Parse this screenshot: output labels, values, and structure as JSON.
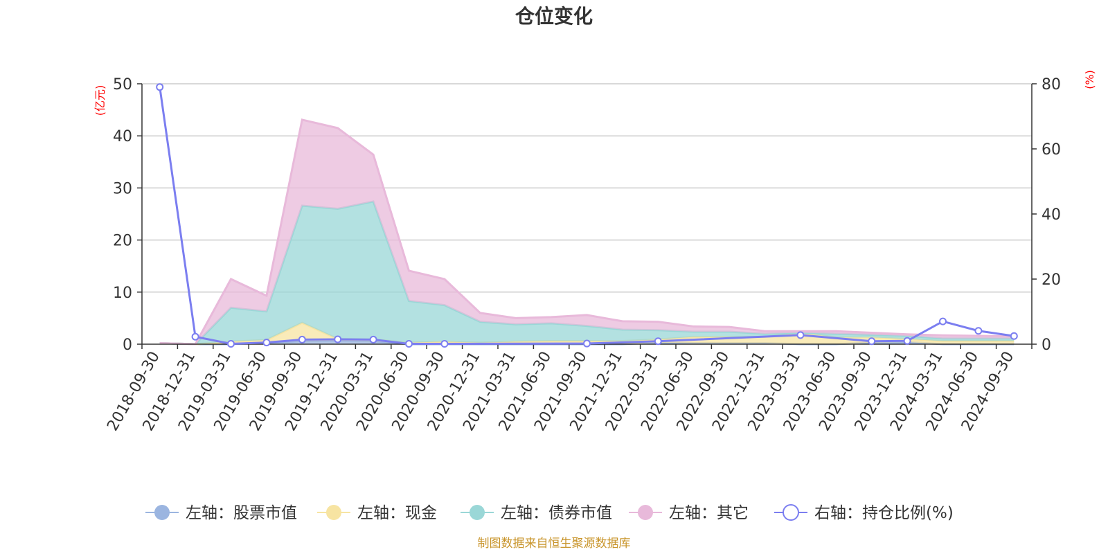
{
  "chart_data": {
    "type": "area",
    "title": "仓位变化",
    "left_unit": "(亿元)",
    "right_unit": "(%)",
    "categories": [
      "2018-09-30",
      "2018-12-31",
      "2019-03-31",
      "2019-06-30",
      "2019-09-30",
      "2019-12-31",
      "2020-03-31",
      "2020-06-30",
      "2020-09-30",
      "2020-12-31",
      "2021-03-31",
      "2021-06-30",
      "2021-09-30",
      "2021-12-31",
      "2022-03-31",
      "2022-06-30",
      "2022-09-30",
      "2022-12-31",
      "2023-03-31",
      "2023-06-30",
      "2023-09-30",
      "2023-12-31",
      "2024-03-31",
      "2024-06-30",
      "2024-09-30"
    ],
    "left_axis": {
      "min": 0,
      "max": 50,
      "ticks": [
        "0",
        "10",
        "20",
        "30",
        "40",
        "50"
      ]
    },
    "right_axis": {
      "min": 0,
      "max": 80,
      "ticks": [
        "0",
        "20",
        "40",
        "60",
        "80"
      ]
    },
    "grid": true,
    "legend_position": "bottom",
    "series": [
      {
        "name": "左轴：股票市值",
        "axis": "left",
        "color": "#9bb5e0",
        "values": [
          0.2,
          0,
          0,
          0.3,
          0.6,
          0.7,
          0.6,
          0,
          0,
          0,
          0,
          0,
          0,
          0,
          0.3,
          0.2,
          0.2,
          0.2,
          0,
          0,
          0.3,
          0.4,
          0,
          0,
          0
        ]
      },
      {
        "name": "左轴：现金",
        "axis": "left",
        "color": "#f7e4a2",
        "values": [
          0,
          0,
          0.5,
          0.5,
          3.5,
          0.3,
          0.3,
          0.3,
          0.5,
          0.3,
          0.5,
          0.6,
          0.6,
          0.6,
          0.6,
          1.2,
          1.2,
          1.2,
          2.2,
          1.3,
          1.0,
          0.6,
          0.6,
          0.6,
          0.6
        ]
      },
      {
        "name": "左轴：债券市值",
        "axis": "left",
        "color": "#9ad7d7",
        "values": [
          0,
          0,
          6.5,
          5.5,
          22.5,
          25,
          26.5,
          8,
          7,
          4,
          3.3,
          3.4,
          2.9,
          2.2,
          1.8,
          1,
          1,
          0.6,
          0,
          0.7,
          0.5,
          0.6,
          0.5,
          0.5,
          0.5
        ]
      },
      {
        "name": "左轴：其它",
        "axis": "left",
        "color": "#e8b9da",
        "values": [
          0,
          0,
          5.5,
          3,
          16.5,
          15.5,
          9,
          5.8,
          5,
          1.7,
          1.2,
          1.2,
          2.1,
          1.6,
          1.6,
          1,
          0.9,
          0.5,
          0.3,
          0.5,
          0.4,
          0.3,
          0.6,
          0.5,
          0.4
        ]
      },
      {
        "name": "右轴：持仓比例(%)",
        "axis": "right",
        "color": "#7b7ef0",
        "values": [
          79,
          2.3,
          0.1,
          0.5,
          1.4,
          1.5,
          1.4,
          0.1,
          0.1,
          null,
          null,
          null,
          0.2,
          null,
          0.9,
          null,
          null,
          null,
          2.8,
          null,
          0.9,
          1.0,
          7.0,
          4.1,
          2.5
        ]
      }
    ],
    "source": "制图数据来自恒生聚源数据库"
  }
}
